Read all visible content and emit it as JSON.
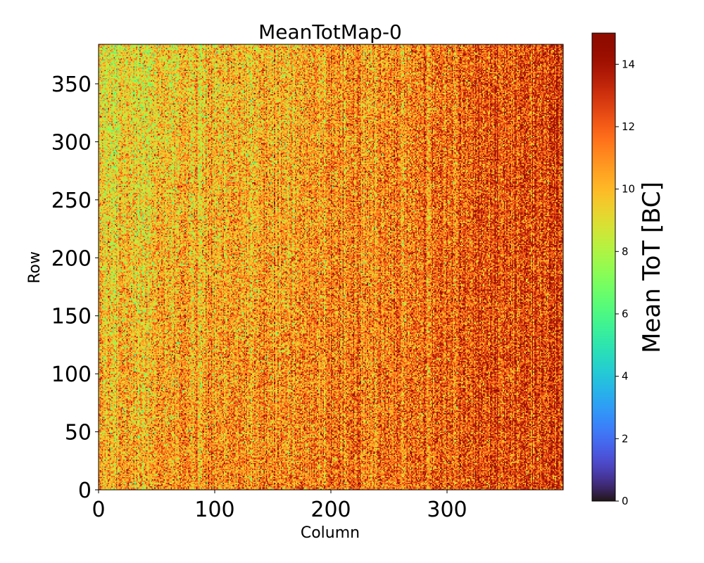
{
  "chart_data": {
    "type": "heatmap",
    "title": "MeanTotMap-0",
    "xlabel": "Column",
    "ylabel": "Row",
    "xlim": [
      0,
      400
    ],
    "ylim": [
      0,
      384
    ],
    "n_columns": 400,
    "n_rows": 384,
    "x_ticks": [
      0,
      100,
      200,
      300
    ],
    "x_tick_labels": [
      "0",
      "100",
      "200",
      "300"
    ],
    "y_ticks": [
      0,
      50,
      100,
      150,
      200,
      250,
      300,
      350
    ],
    "y_tick_labels": [
      "0",
      "50",
      "100",
      "150",
      "200",
      "250",
      "300",
      "350"
    ],
    "colorbar": {
      "label": "Mean ToT [BC]",
      "range": [
        0,
        15
      ],
      "ticks": [
        0,
        2,
        4,
        6,
        8,
        10,
        12,
        14
      ],
      "tick_labels": [
        "0",
        "2",
        "4",
        "6",
        "8",
        "10",
        "12",
        "14"
      ],
      "colormap": "turbo"
    },
    "value_model": {
      "description_of_trend": "mean ToT ~9-10 at low columns/high rows rising to ~13-14 at high columns",
      "left_top_mean": 9.0,
      "left_bottom_mean": 10.5,
      "right_mean": 12.8,
      "pixel_noise_sd": 1.6,
      "column_stripe_sd": 0.6
    }
  }
}
